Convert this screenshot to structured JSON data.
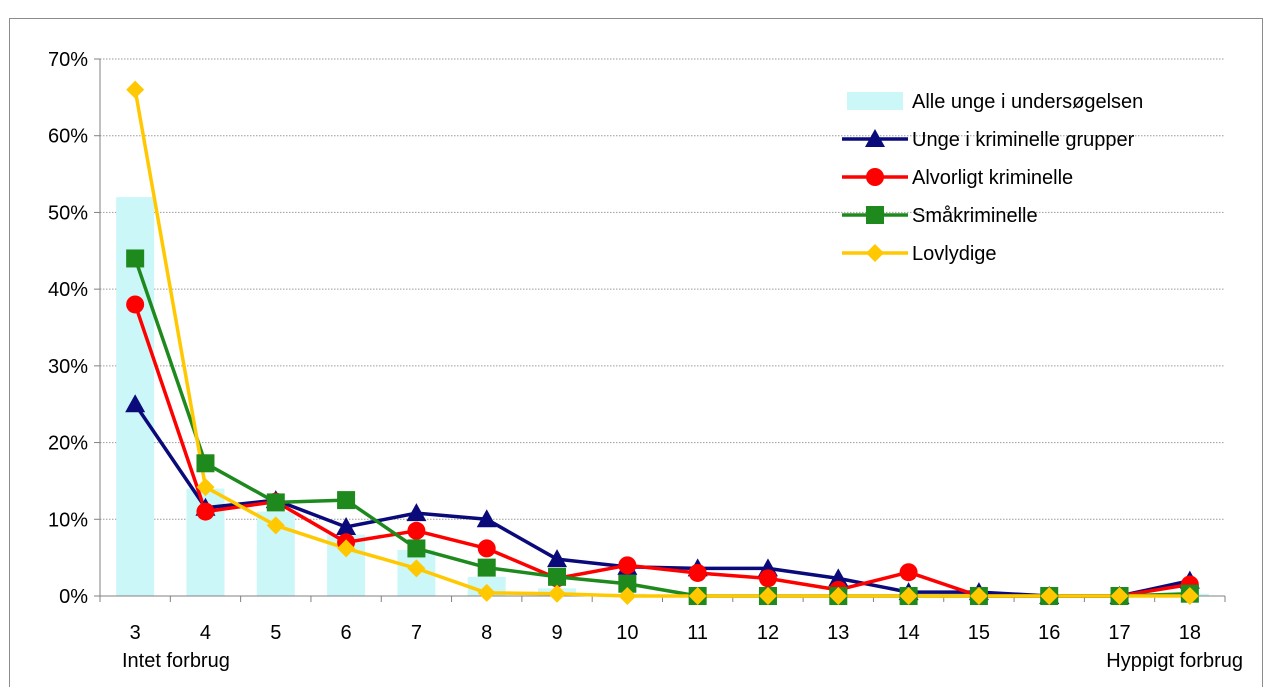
{
  "chart_data": {
    "type": "bar+line",
    "x": [
      3,
      4,
      5,
      6,
      7,
      8,
      9,
      10,
      11,
      12,
      13,
      14,
      15,
      16,
      17,
      18
    ],
    "x_tick_labels": [
      "3",
      "4",
      "5",
      "6",
      "7",
      "8",
      "9",
      "10",
      "11",
      "12",
      "13",
      "14",
      "15",
      "16",
      "17",
      "18"
    ],
    "y_tick_labels": [
      "0%",
      "10%",
      "20%",
      "30%",
      "40%",
      "50%",
      "60%",
      "70%"
    ],
    "ylim": [
      0,
      70
    ],
    "y_unit": "%",
    "grid": "horizontal dotted",
    "legend_position": "top-right",
    "x_start_caption": "Intet forbrug",
    "x_end_caption": "Hyppigt forbrug",
    "series": [
      {
        "name": "Alle unge i undersøgelsen",
        "kind": "bar",
        "color": "#ccf7f9",
        "values": [
          52,
          14,
          11,
          8,
          6,
          2.5,
          1,
          0.3,
          0.2,
          0.2,
          0.1,
          0.1,
          0,
          0,
          0,
          0.3
        ]
      },
      {
        "name": "Unge i kriminelle grupper",
        "kind": "line",
        "marker": "triangle",
        "color": "#0a0a7a",
        "values": [
          25,
          11.5,
          12.5,
          9,
          10.8,
          10,
          4.8,
          3.8,
          3.6,
          3.6,
          2.3,
          0.5,
          0.5,
          0,
          0,
          2
        ]
      },
      {
        "name": "Alvorligt kriminelle",
        "kind": "line",
        "marker": "circle",
        "color": "#ff0000",
        "values": [
          38,
          11,
          12.3,
          7,
          8.5,
          6.2,
          2.3,
          4,
          3,
          2.3,
          0.8,
          3.1,
          0,
          0,
          0,
          1.5
        ]
      },
      {
        "name": "Småkriminelle",
        "kind": "line",
        "marker": "square",
        "color": "#1e8a1e",
        "values": [
          44,
          17.3,
          12.2,
          12.5,
          6.2,
          3.7,
          2.5,
          1.6,
          0,
          0,
          0,
          0,
          0,
          0,
          0,
          0.3
        ]
      },
      {
        "name": "Lovlydige",
        "kind": "line",
        "marker": "diamond",
        "color": "#ffc800",
        "values": [
          66,
          14.2,
          9.2,
          6.2,
          3.6,
          0.4,
          0.3,
          0,
          0,
          0,
          0,
          0,
          0,
          0,
          0,
          0
        ]
      }
    ]
  }
}
